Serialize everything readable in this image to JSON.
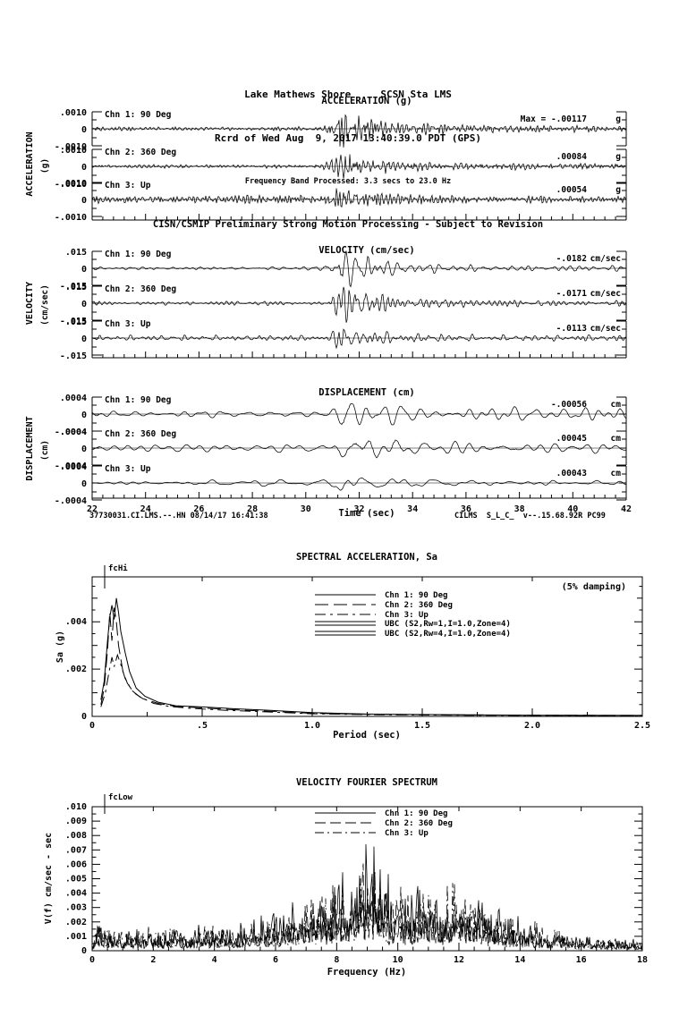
{
  "header": {
    "station_line": "Lake Mathews Shore     SCSN Sta LMS",
    "record_line": "Rcrd of Wed Aug  9, 2017 13:40:39.0 PDT (GPS)",
    "band_line": "Frequency Band Processed: 3.3 secs to 23.0 Hz",
    "processing_line": "CISN/CSMIP Preliminary Strong Motion Processing - Subject to Revision"
  },
  "footer": {
    "left": "37730031.CI.LMS.--.HN 08/14/17 16:41:38",
    "time_axis_label": "Time (sec)",
    "right": "CILMS  S_L_C_  v--.15.68.92R PC99"
  },
  "chart_data": [
    {
      "type": "line",
      "id": "acceleration-timeseries",
      "title": "ACCELERATION (g)",
      "side_label": "ACCELERATION",
      "side_unit": "(g)",
      "xlabel": "Time (sec)",
      "x_range": [
        22,
        42
      ],
      "x_tick_labels": [
        "22",
        "24",
        "26",
        "28",
        "30",
        "32",
        "34",
        "36",
        "38",
        "40",
        "42"
      ],
      "y_tick_labels": [
        ".0010",
        "0",
        "-.0010"
      ],
      "unit": "g",
      "channels": [
        {
          "name": "Chn 1: 90 Deg",
          "max_text": "Max =  -.00117",
          "max_value": -0.00117,
          "envelope": [
            [
              22,
              0.1
            ],
            [
              29,
              0.11
            ],
            [
              30.6,
              0.13
            ],
            [
              31.0,
              0.42
            ],
            [
              31.25,
              1.0
            ],
            [
              31.7,
              0.92
            ],
            [
              32.2,
              0.6
            ],
            [
              32.8,
              0.42
            ],
            [
              33.6,
              0.3
            ],
            [
              34.5,
              0.33
            ],
            [
              35.5,
              0.26
            ],
            [
              37,
              0.22
            ],
            [
              39,
              0.2
            ],
            [
              42,
              0.17
            ]
          ]
        },
        {
          "name": "Chn 2: 360 Deg",
          "max_text": ".00084",
          "max_value": 0.00084,
          "envelope": [
            [
              22,
              0.1
            ],
            [
              30.6,
              0.12
            ],
            [
              31.05,
              0.5
            ],
            [
              31.3,
              1.0
            ],
            [
              31.8,
              0.85
            ],
            [
              32.4,
              0.5
            ],
            [
              33.2,
              0.38
            ],
            [
              34.5,
              0.3
            ],
            [
              36,
              0.24
            ],
            [
              38,
              0.2
            ],
            [
              42,
              0.17
            ]
          ]
        },
        {
          "name": "Chn 3: Up",
          "max_text": ".00054",
          "max_value": 0.00054,
          "envelope": [
            [
              22,
              0.3
            ],
            [
              30.8,
              0.32
            ],
            [
              31.2,
              1.0
            ],
            [
              31.7,
              0.75
            ],
            [
              32.3,
              0.5
            ],
            [
              33.5,
              0.4
            ],
            [
              35,
              0.34
            ],
            [
              37,
              0.3
            ],
            [
              39,
              0.28
            ],
            [
              42,
              0.26
            ]
          ]
        }
      ]
    },
    {
      "type": "line",
      "id": "velocity-timeseries",
      "title": "VELOCITY (cm/sec)",
      "side_label": "VELOCITY",
      "side_unit": "(cm/sec)",
      "xlabel": "Time (sec)",
      "x_range": [
        22,
        42
      ],
      "x_tick_labels": [
        "22",
        "24",
        "26",
        "28",
        "30",
        "32",
        "34",
        "36",
        "38",
        "40",
        "42"
      ],
      "y_tick_labels": [
        ".015",
        "0",
        "-.015"
      ],
      "unit": "cm/sec",
      "channels": [
        {
          "name": "Chn 1: 90 Deg",
          "max_text": "-.0182",
          "max_value": -0.0182,
          "envelope": [
            [
              22,
              0.09
            ],
            [
              30.6,
              0.12
            ],
            [
              31.05,
              0.45
            ],
            [
              31.35,
              1.0
            ],
            [
              31.9,
              0.9
            ],
            [
              32.5,
              0.55
            ],
            [
              33.3,
              0.38
            ],
            [
              34.5,
              0.3
            ],
            [
              36,
              0.22
            ],
            [
              38,
              0.18
            ],
            [
              40,
              0.16
            ],
            [
              42,
              0.14
            ]
          ]
        },
        {
          "name": "Chn 2: 360 Deg",
          "max_text": "-.0171",
          "max_value": -0.0171,
          "envelope": [
            [
              22,
              0.09
            ],
            [
              30.7,
              0.12
            ],
            [
              31.1,
              0.5
            ],
            [
              31.4,
              1.0
            ],
            [
              32,
              0.92
            ],
            [
              32.6,
              0.55
            ],
            [
              33.5,
              0.36
            ],
            [
              35,
              0.28
            ],
            [
              36.5,
              0.2
            ],
            [
              38.5,
              0.17
            ],
            [
              42,
              0.14
            ]
          ]
        },
        {
          "name": "Chn 3: Up",
          "max_text": "-.0113",
          "max_value": -0.0113,
          "envelope": [
            [
              22,
              0.2
            ],
            [
              30.9,
              0.22
            ],
            [
              31.25,
              1.0
            ],
            [
              31.8,
              0.7
            ],
            [
              32.4,
              0.5
            ],
            [
              33.5,
              0.4
            ],
            [
              35,
              0.3
            ],
            [
              37,
              0.26
            ],
            [
              39,
              0.24
            ],
            [
              42,
              0.22
            ]
          ]
        }
      ]
    },
    {
      "type": "line",
      "id": "displacement-timeseries",
      "title": "DISPLACEMENT (cm)",
      "side_label": "DISPLACEMENT",
      "side_unit": "(cm)",
      "xlabel": "Time (sec)",
      "x_range": [
        22,
        42
      ],
      "x_tick_labels": [
        "22",
        "24",
        "26",
        "28",
        "30",
        "32",
        "34",
        "36",
        "38",
        "40",
        "42"
      ],
      "y_tick_labels": [
        ".0004",
        "0",
        "-.0004"
      ],
      "unit": "cm",
      "channels": [
        {
          "name": "Chn 1: 90 Deg",
          "max_text": "-.00056",
          "max_value": -0.00056,
          "envelope": [
            [
              22,
              0.2
            ],
            [
              30.8,
              0.22
            ],
            [
              31.15,
              0.6
            ],
            [
              31.4,
              1.0
            ],
            [
              32,
              0.9
            ],
            [
              32.8,
              0.6
            ],
            [
              33.8,
              0.5
            ],
            [
              35,
              0.45
            ],
            [
              37,
              0.42
            ],
            [
              39,
              0.4
            ],
            [
              42,
              0.34
            ]
          ]
        },
        {
          "name": "Chn 2: 360 Deg",
          "max_text": ".00045",
          "max_value": 0.00045,
          "envelope": [
            [
              22,
              0.2
            ],
            [
              30.9,
              0.22
            ],
            [
              31.2,
              0.65
            ],
            [
              31.45,
              1.0
            ],
            [
              32.1,
              0.95
            ],
            [
              32.9,
              0.65
            ],
            [
              34,
              0.5
            ],
            [
              35.5,
              0.45
            ],
            [
              37.5,
              0.4
            ],
            [
              42,
              0.34
            ]
          ]
        },
        {
          "name": "Chn 3: Up",
          "max_text": ".00043",
          "max_value": 0.00043,
          "envelope": [
            [
              22,
              0.22
            ],
            [
              30.9,
              0.24
            ],
            [
              31.25,
              1.0
            ],
            [
              31.6,
              0.6
            ],
            [
              32.3,
              0.4
            ],
            [
              34,
              0.34
            ],
            [
              36,
              0.3
            ],
            [
              38,
              0.28
            ],
            [
              42,
              0.26
            ]
          ]
        }
      ]
    },
    {
      "type": "line",
      "id": "spectral-acceleration",
      "title": "SPECTRAL ACCELERATION, Sa",
      "note": "(5% damping)",
      "cutoff_label": "fcHi",
      "xlabel": "Period (sec)",
      "ylabel": "Sa (g)",
      "xlim": [
        0,
        2.5
      ],
      "ylim": [
        0,
        0.0059
      ],
      "x_tick_labels": [
        "0",
        ".5",
        "1.0",
        "1.5",
        "2.0",
        "2.5"
      ],
      "y_tick_labels": [
        "0",
        ".002",
        ".004"
      ],
      "legend": [
        {
          "label": "Chn 1: 90 Deg",
          "style": "solid"
        },
        {
          "label": "Chn 2: 360 Deg",
          "style": "long-dash"
        },
        {
          "label": "Chn 3: Up",
          "style": "dash-dot"
        },
        {
          "label": "UBC (S2,Rw=1,I=1.0,Zone=4)",
          "style": "double-solid"
        },
        {
          "label": "UBC (S2,Rw=4,I=1.0,Zone=4)",
          "style": "double-solid"
        }
      ],
      "series": [
        {
          "name": "Chn 1: 90 Deg",
          "style": "solid",
          "points": [
            [
              0.04,
              0.0007
            ],
            [
              0.055,
              0.0015
            ],
            [
              0.07,
              0.0032
            ],
            [
              0.08,
              0.0042
            ],
            [
              0.09,
              0.0047
            ],
            [
              0.1,
              0.0041
            ],
            [
              0.11,
              0.005
            ],
            [
              0.12,
              0.0044
            ],
            [
              0.13,
              0.0036
            ],
            [
              0.15,
              0.0027
            ],
            [
              0.17,
              0.0019
            ],
            [
              0.2,
              0.0012
            ],
            [
              0.24,
              0.00085
            ],
            [
              0.3,
              0.0006
            ],
            [
              0.38,
              0.00045
            ],
            [
              0.5,
              0.0004
            ],
            [
              0.65,
              0.00032
            ],
            [
              0.8,
              0.00026
            ],
            [
              1.0,
              0.00016
            ],
            [
              1.25,
              0.0001
            ],
            [
              1.5,
              8e-05
            ],
            [
              2.0,
              5e-05
            ],
            [
              2.5,
              4e-05
            ]
          ]
        },
        {
          "name": "Chn 2: 360 Deg",
          "style": "long-dash",
          "points": [
            [
              0.04,
              0.0005
            ],
            [
              0.055,
              0.0012
            ],
            [
              0.07,
              0.0028
            ],
            [
              0.08,
              0.0044
            ],
            [
              0.09,
              0.0032
            ],
            [
              0.1,
              0.0046
            ],
            [
              0.11,
              0.004
            ],
            [
              0.12,
              0.003
            ],
            [
              0.14,
              0.0019
            ],
            [
              0.16,
              0.0014
            ],
            [
              0.19,
              0.001
            ],
            [
              0.23,
              0.00075
            ],
            [
              0.3,
              0.00055
            ],
            [
              0.38,
              0.00042
            ],
            [
              0.5,
              0.00036
            ],
            [
              0.65,
              0.00028
            ],
            [
              0.8,
              0.00022
            ],
            [
              1.0,
              0.00013
            ],
            [
              1.25,
              9e-05
            ],
            [
              1.5,
              7e-05
            ],
            [
              2.0,
              5e-05
            ],
            [
              2.5,
              4e-05
            ]
          ]
        },
        {
          "name": "Chn 3: Up",
          "style": "dash-dot",
          "points": [
            [
              0.04,
              0.0004
            ],
            [
              0.06,
              0.001
            ],
            [
              0.075,
              0.0018
            ],
            [
              0.09,
              0.0025
            ],
            [
              0.1,
              0.0021
            ],
            [
              0.115,
              0.0026
            ],
            [
              0.13,
              0.0022
            ],
            [
              0.15,
              0.0016
            ],
            [
              0.18,
              0.0011
            ],
            [
              0.22,
              0.0008
            ],
            [
              0.28,
              0.00055
            ],
            [
              0.35,
              0.00042
            ],
            [
              0.45,
              0.00034
            ],
            [
              0.6,
              0.00026
            ],
            [
              0.8,
              0.00019
            ],
            [
              1.0,
              0.00011
            ],
            [
              1.3,
              7e-05
            ],
            [
              1.7,
              5e-05
            ],
            [
              2.1,
              4e-05
            ],
            [
              2.5,
              3e-05
            ]
          ]
        }
      ]
    },
    {
      "type": "line",
      "id": "velocity-fourier-spectrum",
      "title": "VELOCITY FOURIER SPECTRUM",
      "cutoff_label": "fcLow",
      "xlabel": "Frequency (Hz)",
      "ylabel_fn": "V(f)",
      "ylabel_units": "cm/sec - sec",
      "xlim": [
        0,
        18
      ],
      "ylim": [
        0,
        0.01
      ],
      "x_tick_labels": [
        "0",
        "2",
        "4",
        "6",
        "8",
        "10",
        "12",
        "14",
        "16",
        "18"
      ],
      "y_tick_labels": [
        "0",
        ".001",
        ".002",
        ".003",
        ".004",
        ".005",
        ".006",
        ".007",
        ".008",
        ".009",
        ".010"
      ],
      "legend": [
        {
          "label": "Chn 1: 90 Deg",
          "style": "solid"
        },
        {
          "label": "Chn 2: 360 Deg",
          "style": "long-dash"
        },
        {
          "label": "Chn 3: Up",
          "style": "dash-dot"
        }
      ],
      "envelope": [
        [
          0,
          0.0003
        ],
        [
          0.15,
          0.0016
        ],
        [
          0.5,
          0.001
        ],
        [
          1,
          0.0009
        ],
        [
          2,
          0.0011
        ],
        [
          3,
          0.001
        ],
        [
          4,
          0.0014
        ],
        [
          5,
          0.0013
        ],
        [
          6,
          0.0018
        ],
        [
          6.5,
          0.0024
        ],
        [
          7,
          0.003
        ],
        [
          7.5,
          0.0027
        ],
        [
          8,
          0.0031
        ],
        [
          8.5,
          0.0037
        ],
        [
          8.8,
          0.0044
        ],
        [
          9.1,
          0.005
        ],
        [
          9.4,
          0.004
        ],
        [
          10,
          0.0032
        ],
        [
          10.5,
          0.0028
        ],
        [
          11,
          0.0031
        ],
        [
          11.5,
          0.0026
        ],
        [
          12,
          0.0029
        ],
        [
          12.5,
          0.0024
        ],
        [
          13,
          0.0022
        ],
        [
          13.5,
          0.0018
        ],
        [
          14,
          0.0015
        ],
        [
          15,
          0.0011
        ],
        [
          16,
          0.0008
        ],
        [
          17,
          0.0006
        ],
        [
          18,
          0.0005
        ]
      ]
    }
  ]
}
